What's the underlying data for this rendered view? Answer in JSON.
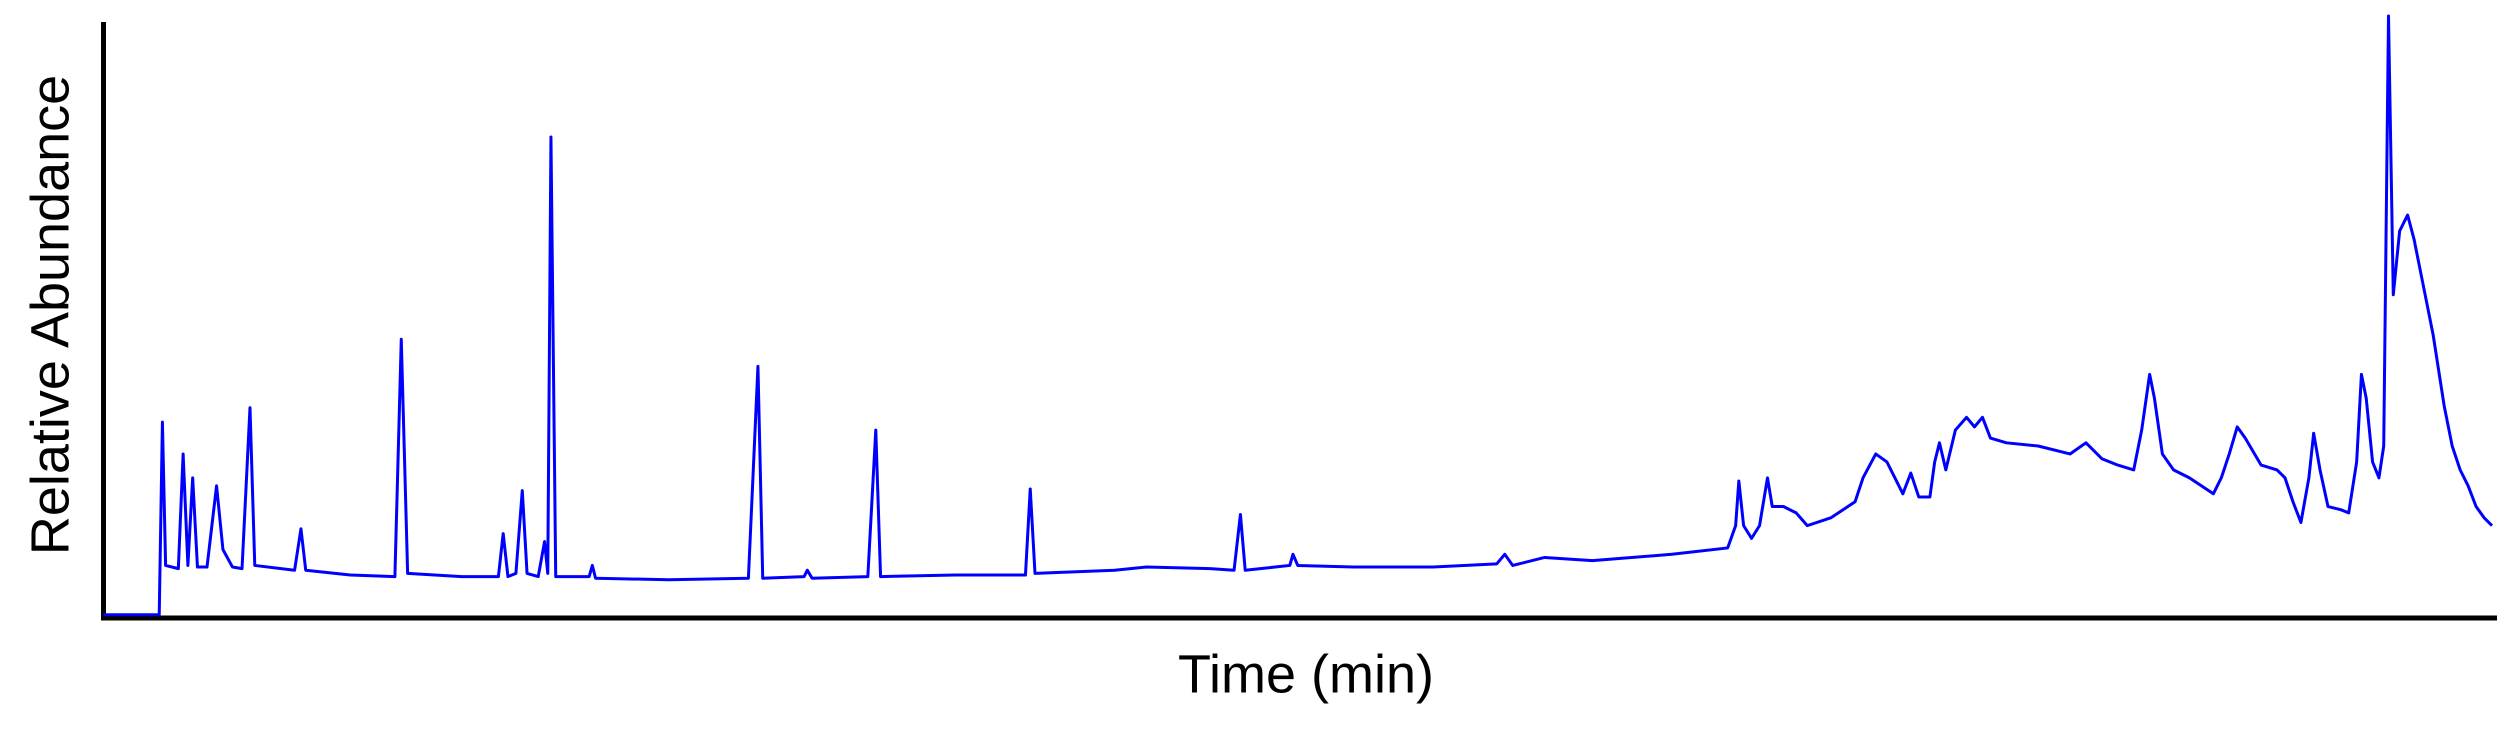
{
  "chart_data": {
    "type": "line",
    "x_label": "Time (min)",
    "y_label": "Relative Abundance",
    "xlim": [
      0,
      1500
    ],
    "ylim": [
      0,
      378
    ],
    "x": [
      0,
      35,
      37,
      39,
      47,
      50,
      53,
      56,
      59,
      65,
      71,
      75,
      81,
      87,
      92,
      95,
      120,
      124,
      127,
      155,
      183,
      187,
      191,
      225,
      248,
      251,
      254,
      259,
      263,
      266,
      273,
      277,
      279,
      281,
      284,
      305,
      307,
      309,
      355,
      405,
      411,
      414,
      440,
      442,
      445,
      480,
      485,
      488,
      535,
      579,
      582,
      585,
      635,
      655,
      695,
      710,
      714,
      717,
      745,
      747,
      750,
      785,
      835,
      875,
      880,
      885,
      905,
      935,
      985,
      1020,
      1025,
      1027,
      1030,
      1035,
      1040,
      1045,
      1048,
      1055,
      1063,
      1070,
      1085,
      1100,
      1105,
      1113,
      1120,
      1125,
      1130,
      1135,
      1140,
      1147,
      1150,
      1153,
      1157,
      1163,
      1170,
      1175,
      1180,
      1185,
      1195,
      1215,
      1235,
      1245,
      1255,
      1265,
      1275,
      1280,
      1285,
      1288,
      1293,
      1300,
      1310,
      1325,
      1330,
      1335,
      1340,
      1345,
      1355,
      1365,
      1370,
      1375,
      1380,
      1385,
      1388,
      1392,
      1397,
      1405,
      1410,
      1415,
      1418,
      1421,
      1425,
      1429,
      1432,
      1435,
      1438,
      1442,
      1447,
      1451,
      1457,
      1463,
      1470,
      1475,
      1480,
      1485,
      1490,
      1495,
      1500
    ],
    "series": [
      {
        "color": "#0000ff",
        "values": [
          2,
          2,
          123,
          33,
          31,
          103,
          33,
          88,
          32,
          32,
          83,
          43,
          32,
          31,
          132,
          33,
          30,
          56,
          30,
          27,
          26,
          175,
          28,
          26,
          26,
          53,
          26,
          28,
          80,
          28,
          26,
          48,
          28,
          302,
          26,
          26,
          33,
          25,
          24,
          25,
          158,
          25,
          26,
          30,
          25,
          26,
          118,
          26,
          27,
          27,
          81,
          28,
          30,
          32,
          31,
          30,
          65,
          30,
          33,
          40,
          33,
          32,
          32,
          34,
          40,
          33,
          38,
          36,
          40,
          44,
          58,
          86,
          58,
          50,
          58,
          88,
          70,
          70,
          66,
          58,
          63,
          73,
          88,
          103,
          98,
          88,
          78,
          91,
          76,
          76,
          98,
          110,
          93,
          118,
          126,
          120,
          126,
          113,
          110,
          108,
          103,
          110,
          100,
          96,
          93,
          118,
          153,
          138,
          103,
          93,
          88,
          78,
          88,
          103,
          120,
          113,
          96,
          93,
          88,
          73,
          60,
          88,
          116,
          93,
          70,
          68,
          66,
          98,
          153,
          138,
          98,
          88,
          108,
          378,
          203,
          243,
          253,
          238,
          208,
          178,
          133,
          108,
          93,
          83,
          70,
          63,
          58
        ]
      }
    ]
  }
}
